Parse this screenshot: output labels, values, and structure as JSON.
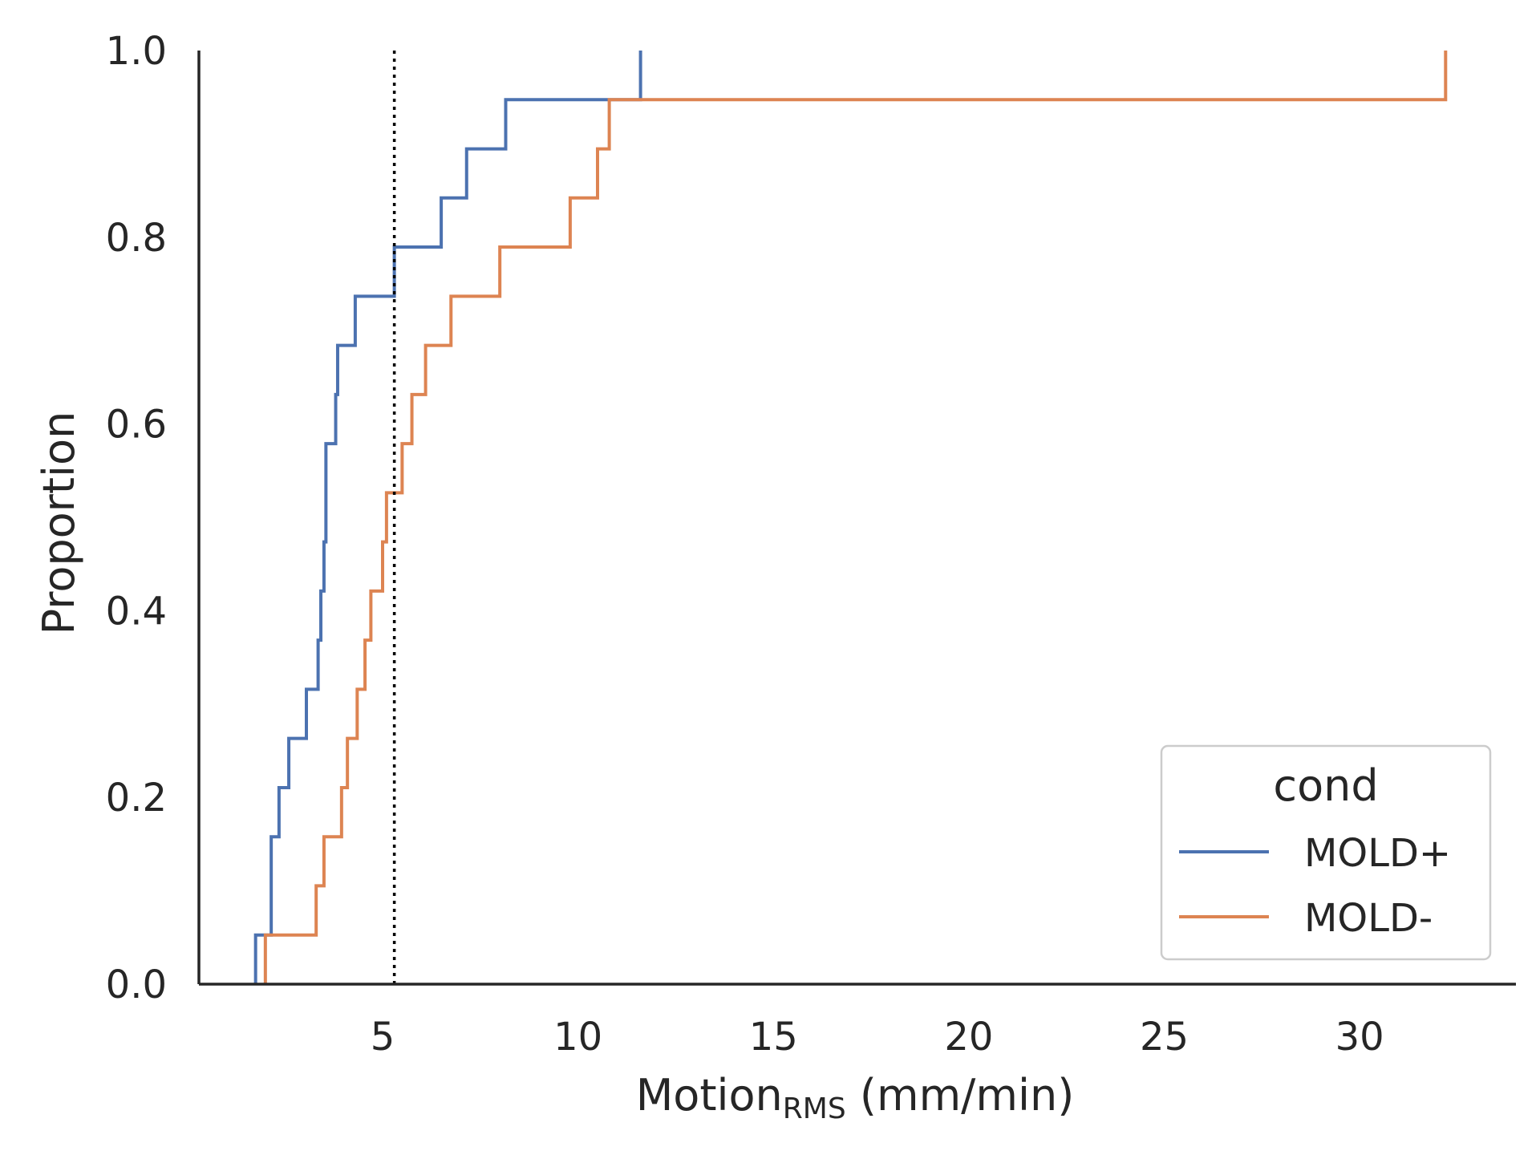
{
  "chart_data": {
    "type": "line",
    "subtype": "ecdf-step",
    "xlabel": "Motion",
    "xlabel_sub": "RMS",
    "xlabel_unit": " (mm/min)",
    "ylabel": "Proportion",
    "xlim": [
      0.3,
      34
    ],
    "ylim": [
      0,
      1
    ],
    "xticks": [
      5,
      10,
      15,
      20,
      25,
      30
    ],
    "yticks": [
      "0.0",
      "0.2",
      "0.4",
      "0.6",
      "0.8",
      "1.0"
    ],
    "grid": false,
    "legend": {
      "title": "cond",
      "position": "bottom-right"
    },
    "reference_line": {
      "x": 5.3,
      "style": "dotted",
      "color": "#000000"
    },
    "series": [
      {
        "name": "MOLD+",
        "color": "#4c72b0",
        "x": [
          1.75,
          2.15,
          2.35,
          2.6,
          3.05,
          3.35,
          3.42,
          3.5,
          3.55,
          3.8,
          3.85,
          4.3,
          5.3,
          6.5,
          7.15,
          8.15,
          11.6
        ],
        "y": [
          0.0526,
          0.1579,
          0.2105,
          0.2632,
          0.3158,
          0.3684,
          0.4211,
          0.4737,
          0.5789,
          0.6316,
          0.6842,
          0.7368,
          0.7895,
          0.8421,
          0.8947,
          0.9474,
          1.0
        ]
      },
      {
        "name": "MOLD-",
        "color": "#dd8452",
        "x": [
          2.0,
          3.3,
          3.5,
          3.95,
          4.1,
          4.35,
          4.55,
          4.7,
          5.0,
          5.1,
          5.2,
          5.5,
          5.75,
          6.1,
          6.75,
          8.0,
          9.8,
          10.5,
          10.8,
          32.2
        ],
        "y": [
          0.0526,
          0.1053,
          0.1579,
          0.2105,
          0.2632,
          0.3158,
          0.3684,
          0.4211,
          0.4737,
          0.5263,
          0.5263,
          0.5789,
          0.6316,
          0.6842,
          0.7368,
          0.7895,
          0.8421,
          0.8947,
          0.9474,
          1.0
        ]
      }
    ]
  }
}
